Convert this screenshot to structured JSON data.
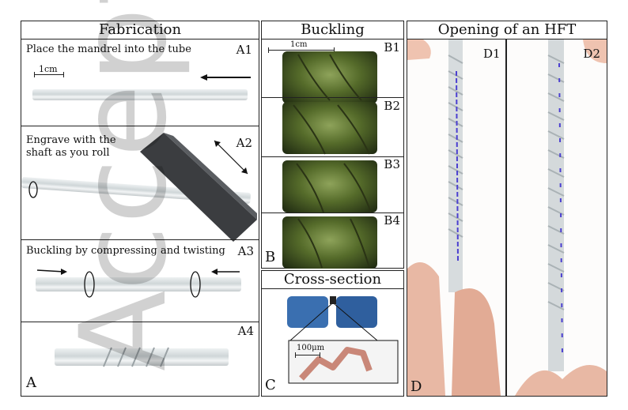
{
  "fabrication": {
    "title": "Fabrication",
    "a1_text": "Place the mandrel into the tube",
    "a1_label": "A1",
    "a1_scale": "1cm",
    "a2_text_line1": "Engrave with the",
    "a2_text_line2": "shaft as you roll",
    "a2_label": "A2",
    "a3_text": "Buckling by compressing and twisting",
    "a3_label": "A3",
    "a4_label": "A4",
    "panel_letter": "A"
  },
  "buckling": {
    "title": "Buckling",
    "scale": "1cm",
    "labels": [
      "B1",
      "B2",
      "B3",
      "B4"
    ],
    "panel_letter": "B"
  },
  "cross_section": {
    "title": "Cross-section",
    "scale": "100μm",
    "panel_letter": "C"
  },
  "opening": {
    "title": "Opening of an HFT",
    "d1_label": "D1",
    "d2_label": "D2",
    "panel_letter": "D"
  },
  "watermark": "Accepted"
}
